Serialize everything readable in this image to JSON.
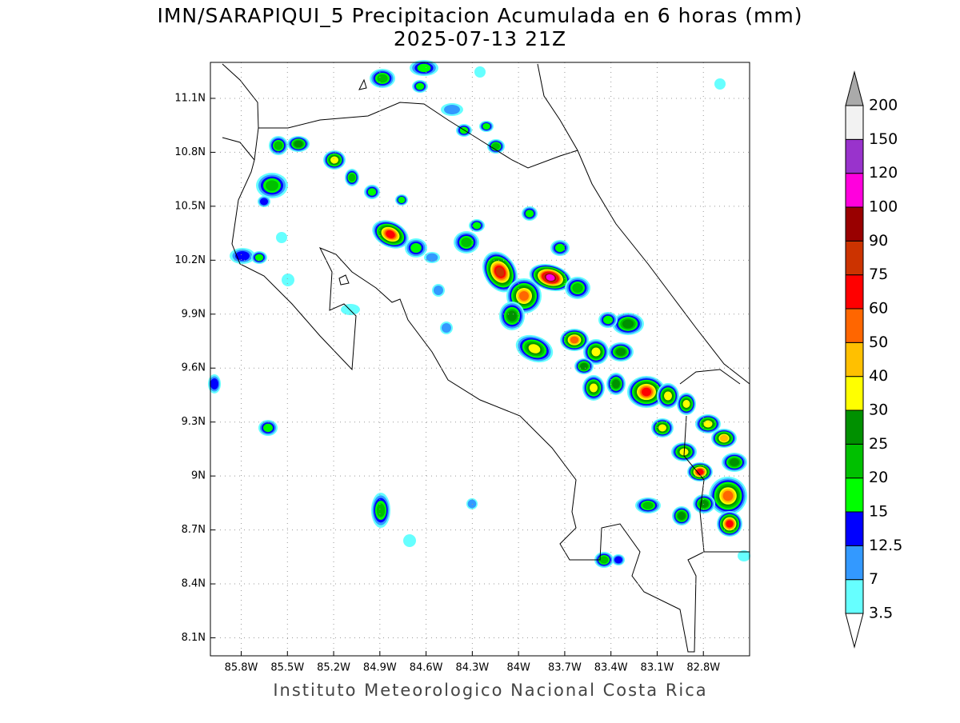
{
  "header": {
    "title": "IMN/SARAPIQUI_5 Precipitacion Acumulada en 6 horas (mm)",
    "subtitle": "2025-07-13 21Z"
  },
  "map": {
    "xlim": [
      -86.0,
      -82.5
    ],
    "ylim": [
      8.0,
      11.3
    ],
    "grid": true,
    "yticks": [
      {
        "value": 8.1,
        "label": "8.1N"
      },
      {
        "value": 8.4,
        "label": "8.4N"
      },
      {
        "value": 8.7,
        "label": "8.7N"
      },
      {
        "value": 9.0,
        "label": "9N"
      },
      {
        "value": 9.3,
        "label": "9.3N"
      },
      {
        "value": 9.6,
        "label": "9.6N"
      },
      {
        "value": 9.9,
        "label": "9.9N"
      },
      {
        "value": 10.2,
        "label": "10.2N"
      },
      {
        "value": 10.5,
        "label": "10.5N"
      },
      {
        "value": 10.8,
        "label": "10.8N"
      },
      {
        "value": 11.1,
        "label": "11.1N"
      }
    ],
    "xticks": [
      {
        "value": -85.8,
        "label": "85.8W"
      },
      {
        "value": -85.5,
        "label": "85.5W"
      },
      {
        "value": -85.2,
        "label": "85.2W"
      },
      {
        "value": -84.9,
        "label": "84.9W"
      },
      {
        "value": -84.6,
        "label": "84.6W"
      },
      {
        "value": -84.3,
        "label": "84.3W"
      },
      {
        "value": -84.0,
        "label": "84W"
      },
      {
        "value": -83.7,
        "label": "83.7W"
      },
      {
        "value": -83.4,
        "label": "83.4W"
      },
      {
        "value": -83.1,
        "label": "83.1W"
      },
      {
        "value": -82.8,
        "label": "82.8W"
      }
    ]
  },
  "colorbar": {
    "levels": [
      3.5,
      7,
      12.5,
      15,
      20,
      25,
      30,
      40,
      50,
      60,
      75,
      90,
      100,
      120,
      150,
      200
    ],
    "colors": [
      "#ffffff",
      "#66ffff",
      "#3399ff",
      "#0000ff",
      "#00ff00",
      "#00c000",
      "#009000",
      "#ffff00",
      "#ffc000",
      "#ff6600",
      "#ff0000",
      "#cc3300",
      "#990000",
      "#ff00dd",
      "#9933cc",
      "#f2f2f2",
      "#aaaaaa"
    ]
  },
  "footer": "Instituto Meteorologico Nacional Costa Rica"
}
